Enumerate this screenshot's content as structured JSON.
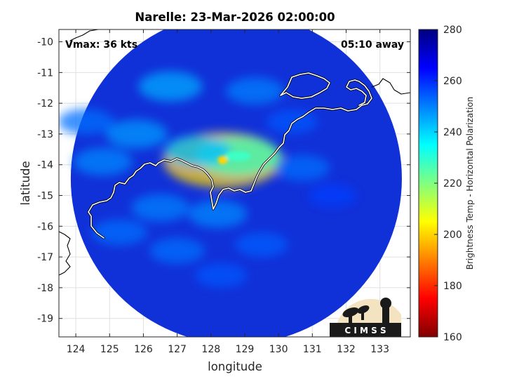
{
  "chart_data": {
    "type": "heatmap",
    "title": "Narelle: 23-Mar-2026 02:00:00",
    "xlabel": "longitude",
    "ylabel": "latitude",
    "xlim": [
      123.5,
      133.9
    ],
    "ylim": [
      -19.6,
      -9.6
    ],
    "x_ticks": [
      124,
      125,
      126,
      127,
      128,
      129,
      130,
      131,
      132,
      133
    ],
    "y_ticks": [
      -10,
      -11,
      -12,
      -13,
      -14,
      -15,
      -16,
      -17,
      -18,
      -19
    ],
    "grid": true,
    "annotations": {
      "vmax": "Vmax: 36 kts",
      "time_away": "05:10 away"
    },
    "colorbar": {
      "label": "Brightness Temp - Horizontal Polarization",
      "min": 160,
      "max": 280,
      "ticks": [
        280,
        260,
        240,
        220,
        200,
        180,
        160
      ],
      "colormap": [
        "#800000",
        "#ff0000",
        "#ff8000",
        "#ffff00",
        "#80ff80",
        "#00ffff",
        "#0080ff",
        "#0000ff",
        "#000080"
      ]
    },
    "swath": {
      "center": [
        128.75,
        -14.45
      ],
      "radius_deg": 4.9,
      "background_color": "#1030d8"
    },
    "features": [
      {
        "lon": 128.35,
        "lat": -13.85,
        "value": 200
      },
      {
        "lon": 128.8,
        "lat": -13.72,
        "value": 228
      },
      {
        "lon": 127.6,
        "lat": -13.55,
        "value": 243
      },
      {
        "lon": 126.8,
        "lat": -11.45,
        "value": 245
      },
      {
        "lon": 125.8,
        "lat": -13.0,
        "value": 247
      },
      {
        "lon": 124.8,
        "lat": -13.9,
        "value": 249
      },
      {
        "lon": 129.3,
        "lat": -11.6,
        "value": 250
      },
      {
        "lon": 126.5,
        "lat": -15.4,
        "value": 250
      },
      {
        "lon": 128.2,
        "lat": -15.6,
        "value": 249
      },
      {
        "lon": 127.0,
        "lat": -16.8,
        "value": 252
      },
      {
        "lon": 125.3,
        "lat": -16.2,
        "value": 252
      },
      {
        "lon": 129.5,
        "lat": -16.6,
        "value": 254
      },
      {
        "lon": 128.3,
        "lat": -17.6,
        "value": 255
      },
      {
        "lon": 130.7,
        "lat": -14.1,
        "value": 252
      },
      {
        "lon": 130.4,
        "lat": -12.6,
        "value": 255
      },
      {
        "lon": 124.3,
        "lat": -12.6,
        "value": 252
      },
      {
        "lon": 131.6,
        "lat": -15.0,
        "value": 258
      }
    ],
    "logo_text": "CIMSS"
  }
}
